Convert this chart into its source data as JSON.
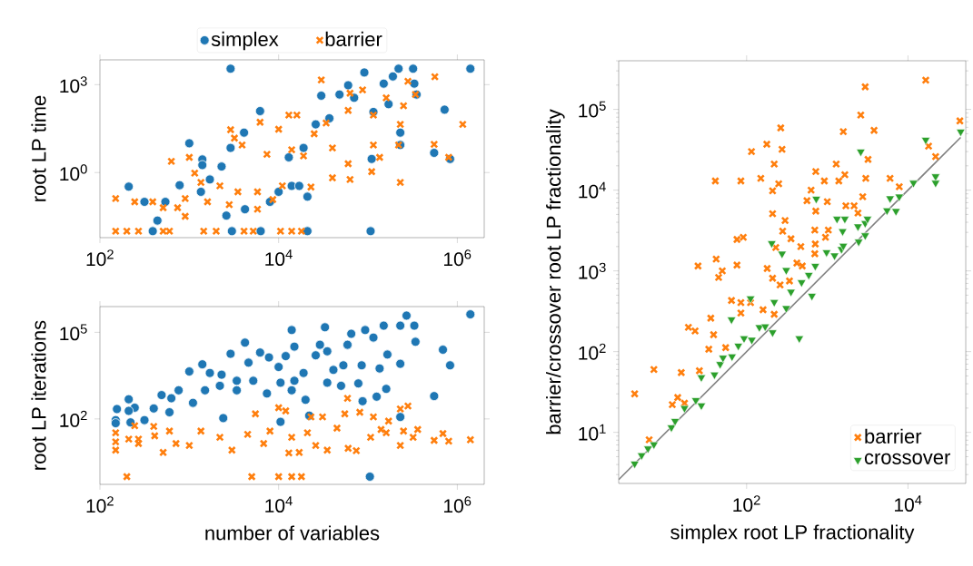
{
  "chart_data": [
    {
      "type": "scatter",
      "ylabel": "root LP time",
      "log": "xy",
      "legend": "top",
      "xlim": [
        100,
        2000000
      ],
      "ylim": [
        0.006,
        7000
      ],
      "xticks": [
        {
          "value": 100,
          "label": "10$^{2}$"
        },
        {
          "value": 10000,
          "label": "10$^{4}$"
        },
        {
          "value": 1000000,
          "label": "10$^{6}$"
        }
      ],
      "yticks": [
        {
          "value": 1,
          "label": "10$^{0}$"
        },
        {
          "value": 1000,
          "label": "10$^{3}$"
        }
      ],
      "series": [
        {
          "name": "simplex",
          "color": "#1f77b4",
          "marker": "circle",
          "x": [
            2900,
            1400000,
            220000,
            320000,
            91000,
            190000,
            150000,
            330000,
            60000,
            30000,
            48000,
            350000,
            170000,
            70000,
            6200,
            720000,
            115000,
            37000,
            26000,
            4100,
            1000,
            2900,
            230000,
            230000,
            550000,
            830000,
            110000,
            1400,
            1400,
            2300,
            19000,
            13000,
            14000,
            17000,
            21000,
            780,
            210,
            315,
            540,
            440,
            4200,
            2600,
            1350,
            1700,
            8000,
            10000,
            390,
            3000,
            6300,
            21000,
            107000
          ],
          "values": [
            3500,
            3500,
            3500,
            3500,
            2600,
            1900,
            1080,
            1080,
            950,
            420,
            460,
            460,
            215,
            355,
            125,
            140,
            117,
            71,
            44,
            23,
            10,
            6.9,
            23,
            8.7,
            4.7,
            2.9,
            2.9,
            2.8,
            1.8,
            1.6,
            6.9,
            3.3,
            0.35,
            0.35,
            0.15,
            0.37,
            0.33,
            0.1,
            0.1,
            0.023,
            0.056,
            0.034,
            0.22,
            0.58,
            0.1,
            0.22,
            0.01,
            0.01,
            0.01,
            0.01,
            0.01
          ]
        },
        {
          "name": "barrier",
          "color": "#ff7f0e",
          "marker": "cross",
          "x": [
            30000,
            560000,
            1150000,
            280000,
            63000,
            87000,
            160000,
            340000,
            250000,
            60000,
            115000,
            13000,
            16000,
            6200,
            2900,
            3200,
            10000,
            34000,
            25000,
            230000,
            220000,
            115000,
            550000,
            800000,
            135000,
            630,
            1000,
            1150,
            3900,
            7400,
            14000,
            19000,
            40000,
            60000,
            40000,
            63000,
            110000,
            230000,
            1350,
            2200,
            3500,
            5800,
            11000,
            23000,
            900,
            1600,
            2800,
            5800,
            8600,
            150,
            245,
            390,
            510,
            740,
            900,
            150,
            200,
            270,
            510,
            600,
            1450,
            2000,
            4100,
            5200,
            10500,
            14000,
            18000
          ],
          "values": [
            1450,
            1850,
            44,
            1300,
            510,
            660,
            355,
            460,
            190,
            132,
            91,
            91,
            91,
            52,
            29,
            15,
            30,
            49,
            21,
            44,
            8.7,
            8.7,
            9.2,
            3.3,
            3.3,
            2.4,
            3.3,
            0.95,
            8.7,
            4.2,
            6,
            3.7,
            6.9,
            2,
            0.66,
            0.58,
            1.07,
            0.46,
            0.46,
            0.35,
            0.22,
            0.22,
            0.35,
            0.32,
            0.13,
            0.1,
            0.08,
            0.056,
            0.12,
            0.13,
            0.1,
            0.1,
            0.063,
            0.063,
            0.032,
            0.01,
            0.01,
            0.01,
            0.01,
            0.01,
            0.01,
            0.01,
            0.01,
            0.01,
            0.01,
            0.01,
            0.01
          ]
        }
      ]
    },
    {
      "type": "scatter",
      "xlabel": "number of variables",
      "ylabel": "root LP iterations",
      "log": "xy",
      "xlim": [
        100,
        2000000
      ],
      "ylim": [
        0.54,
        780000
      ],
      "xticks": [
        {
          "value": 100,
          "label": "10$^{2}$"
        },
        {
          "value": 10000,
          "label": "10$^{4}$"
        },
        {
          "value": 1000000,
          "label": "10$^{6}$"
        }
      ],
      "yticks": [
        {
          "value": 100,
          "label": "10$^{2}$"
        },
        {
          "value": 100000,
          "label": "10$^{5}$"
        }
      ],
      "series": [
        {
          "color": "#1f77b4",
          "marker": "circle",
          "x": [
            1400000,
            270000,
            230000,
            330000,
            150000,
            93000,
            33000,
            14000,
            65000,
            115000,
            340000,
            690000,
            4200,
            29000,
            15000,
            59000,
            35000,
            26000,
            6200,
            7800,
            2900,
            12000,
            165000,
            830000,
            230000,
            85000,
            53000,
            1400,
            1000,
            4600,
            10000,
            19000,
            41000,
            135000,
            1700,
            2300,
            3400,
            5200,
            10500,
            15000,
            35000,
            78000,
            50000,
            160000,
            550000,
            125000,
            87000,
            20000,
            14000,
            7400,
            3400,
            2200,
            1500,
            1100,
            630,
            760,
            490,
            600,
            400,
            210,
            245,
            210,
            155,
            150,
            150,
            220,
            315,
            2400,
            10500,
            22000,
            230000,
            105000
          ],
          "values": [
            420000,
            380000,
            170000,
            170000,
            170000,
            120000,
            150000,
            120000,
            89000,
            66000,
            47000,
            25000,
            44000,
            37000,
            32000,
            37000,
            22000,
            16000,
            20000,
            13500,
            18000,
            15000,
            17000,
            7200,
            8100,
            7200,
            7200,
            7800,
            4400,
            8900,
            6300,
            3900,
            5000,
            5600,
            3900,
            3400,
            2100,
            2100,
            1800,
            2100,
            1800,
            1700,
            1400,
            1100,
            620,
            590,
            410,
            460,
            980,
            760,
            980,
            1400,
            980,
            360,
            520,
            980,
            670,
            170,
            230,
            480,
            245,
            190,
            220,
            91,
            71,
            76,
            91,
            107,
            79,
            130,
            117,
            1
          ]
        },
        {
          "color": "#ff7f0e",
          "marker": "cross",
          "x": [
            59000,
            280000,
            230000,
            81000,
            55000,
            115000,
            170000,
            10000,
            12000,
            5500,
            23000,
            31000,
            245,
            400,
            600,
            150,
            150,
            150,
            210,
            270,
            270,
            410,
            510,
            710,
            1000,
            1350,
            2200,
            3000,
            4500,
            6800,
            8000,
            13000,
            17000,
            14000,
            21000,
            26000,
            35000,
            45000,
            60000,
            74000,
            107000,
            140000,
            230000,
            250000,
            360000,
            320000,
            550000,
            690000,
            800000,
            1400000,
            160000,
            200,
            5000,
            10000,
            14000,
            18000
          ],
          "values": [
            520,
            280,
            220,
            170,
            150,
            117,
            84,
            245,
            190,
            150,
            117,
            117,
            58,
            55,
            38,
            33,
            16,
            8.3,
            20,
            20,
            14,
            26,
            6.9,
            14,
            12,
            38,
            23,
            8.3,
            29,
            14,
            38,
            6.6,
            6.9,
            23,
            33,
            12,
            8.3,
            48,
            9.6,
            7.9,
            23,
            43,
            12,
            38,
            43,
            23,
            18,
            31,
            17,
            19,
            33,
            1,
            1,
            1,
            1,
            1
          ]
        }
      ]
    },
    {
      "type": "scatter",
      "xlabel": "simplex root LP fractionality",
      "ylabel": "barrier/crossover root LP fractionality",
      "log": "xy",
      "legend": "bottom right",
      "xlim": [
        2.6,
        52000
      ],
      "ylim": [
        2.33,
        400000
      ],
      "xticks": [
        {
          "value": 100,
          "label": "10$^{2}$"
        },
        {
          "value": 10000,
          "label": "10$^{4}$"
        }
      ],
      "yticks": [
        {
          "value": 10,
          "label": "10$^{1}$"
        },
        {
          "value": 100,
          "label": "10$^{2}$"
        },
        {
          "value": 1000,
          "label": "10$^{3}$"
        },
        {
          "value": 10000,
          "label": "10$^{4}$"
        },
        {
          "value": 100000,
          "label": "10$^{5}$"
        }
      ],
      "series": [
        {
          "type": "line",
          "color": "#808080",
          "marker": "none",
          "x": [
            2.6,
            45000
          ],
          "values": [
            2.6,
            45000
          ]
        },
        {
          "name": "barrier",
          "color": "#ff7f0e",
          "marker": "cross",
          "x": [
            4.1,
            7.1,
            15.5,
            6.2,
            26,
            19,
            23,
            34,
            55,
            39,
            36,
            65,
            85,
            85,
            112,
            25,
            42,
            50,
            45,
            76,
            76,
            91,
            41,
            85,
            115,
            178,
            265,
            275,
            220,
            150,
            250,
            210,
            210,
            300,
            280,
            355,
            470,
            230,
            180,
            210,
            260,
            160,
            340,
            420,
            490,
            630,
            560,
            720,
            920,
            720,
            700,
            710,
            700,
            1000,
            950,
            1030,
            1290,
            1390,
            1580,
            1650,
            1700,
            2150,
            2400,
            2600,
            2950,
            2750,
            3000,
            3200,
            3800,
            6000,
            7800,
            16600,
            18000,
            22000,
            44000,
            12,
            14,
            17,
            220
          ],
          "values": [
            30,
            60,
            55,
            8.1,
            58,
            200,
            180,
            107,
            112,
            162,
            260,
            430,
            300,
            405,
            405,
            1150,
            1400,
            1000,
            830,
            1180,
            2450,
            2600,
            13000,
            13000,
            30000,
            37000,
            59000,
            32000,
            21000,
            14000,
            12000,
            9800,
            5100,
            4200,
            3100,
            2500,
            2000,
            1950,
            1070,
            810,
            670,
            330,
            750,
            1250,
            1150,
            10000,
            7400,
            17000,
            13000,
            5500,
            3200,
            2150,
            1630,
            7200,
            2600,
            3200,
            21000,
            13000,
            53000,
            15500,
            6400,
            6400,
            5200,
            85000,
            190000,
            8300,
            14000,
            24000,
            55000,
            14000,
            11000,
            230000,
            35000,
            26000,
            72000,
            22,
            27,
            23,
            290
          ]
        },
        {
          "name": "crossover",
          "color": "#2ca02c",
          "marker": "triangle",
          "x": [
            4.1,
            5,
            6,
            7.1,
            11.7,
            13,
            17,
            23.5,
            27.5,
            27.5,
            40,
            47,
            51,
            65,
            66,
            79,
            93,
            116,
            112,
            144,
            170,
            210,
            220,
            205,
            275,
            310,
            310,
            355,
            450,
            480,
            590,
            645,
            730,
            710,
            980,
            1230,
            1500,
            1650,
            1320,
            1550,
            1580,
            2400,
            2450,
            2600,
            2950,
            3150,
            2950,
            6000,
            5500,
            7100,
            7800,
            11700,
            16600,
            22000,
            22000,
            45000
          ],
          "values": [
            4.1,
            5.2,
            6.3,
            7.1,
            11.5,
            13.8,
            20,
            25,
            21.5,
            48,
            52,
            70,
            84,
            250,
            87,
            118,
            146,
            140,
            455,
            200,
            205,
            173,
            410,
            2200,
            1630,
            1020,
            345,
            550,
            146,
            720,
            890,
            490,
            7800,
            1150,
            1700,
            1550,
            1860,
            4400,
            4400,
            3100,
            2040,
            3550,
            2300,
            30000,
            3900,
            4400,
            2750,
            7900,
            5600,
            5500,
            8300,
            12300,
            42000,
            14800,
            12300,
            53000
          ]
        }
      ]
    }
  ]
}
